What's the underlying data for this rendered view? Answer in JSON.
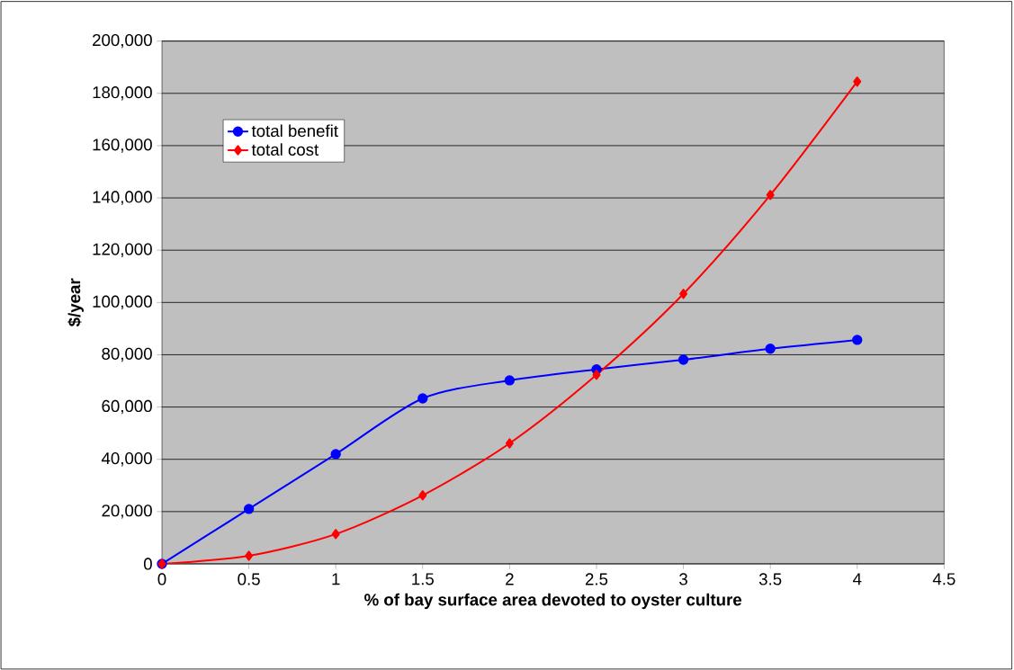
{
  "chart_data": {
    "type": "line",
    "xlabel": "% of bay surface area devoted to oyster culture",
    "ylabel": "$/year",
    "x": [
      0,
      0.5,
      1,
      1.5,
      2,
      2.5,
      3,
      3.5,
      4
    ],
    "series": [
      {
        "name": "total benefit",
        "color": "#0000ff",
        "marker": "circle",
        "values": [
          0,
          21000,
          42000,
          63300,
          70200,
          74400,
          78100,
          82300,
          85700
        ]
      },
      {
        "name": "total cost",
        "color": "#ff0000",
        "marker": "diamond",
        "values": [
          0,
          3100,
          11400,
          26200,
          46100,
          72300,
          103300,
          141100,
          184500
        ]
      }
    ],
    "xlim": [
      0,
      4.5
    ],
    "xticks": [
      0,
      0.5,
      1,
      1.5,
      2,
      2.5,
      3,
      3.5,
      4,
      4.5
    ],
    "ylim": [
      0,
      200000
    ],
    "yticks": [
      0,
      {
        "value": 20000,
        "label": "20,000"
      },
      {
        "value": 40000,
        "label": "40,000"
      },
      {
        "value": 60000,
        "label": "60,000"
      },
      {
        "value": 80000,
        "label": "80,000"
      },
      {
        "value": 100000,
        "label": "100,000"
      },
      {
        "value": 120000,
        "label": "120,000"
      },
      {
        "value": 140000,
        "label": "140,000"
      },
      {
        "value": 160000,
        "label": "160,000"
      },
      {
        "value": 180000,
        "label": "180,000"
      },
      {
        "value": 200000,
        "label": "200,000"
      }
    ],
    "grid": "y",
    "legend": "top left",
    "line_style": "solid"
  }
}
